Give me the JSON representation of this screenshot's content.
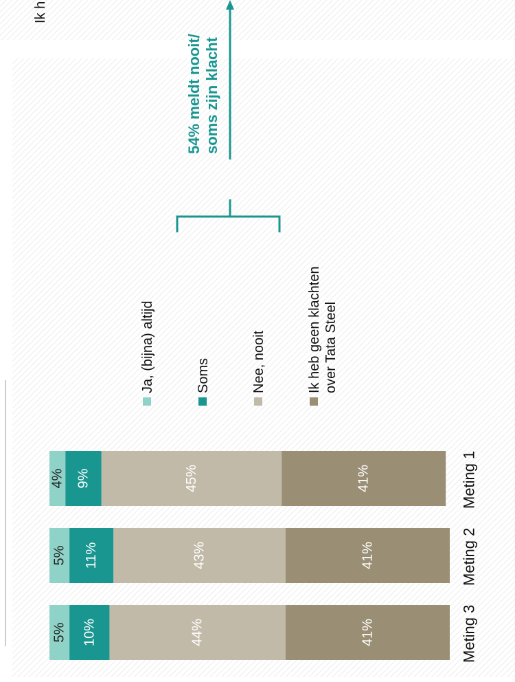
{
  "chart_data": {
    "type": "stacked_bar",
    "top_text": "Ik h",
    "categories": [
      "Meting 1",
      "Meting 2",
      "Meting 3"
    ],
    "series": [
      {
        "name": "Ja, (bijna) altijd",
        "color": "#8fd3c8",
        "values": [
          4,
          5,
          5
        ],
        "value_labels": [
          "4%",
          "5%",
          "5%"
        ]
      },
      {
        "name": "Soms",
        "color": "#1a9690",
        "values": [
          9,
          11,
          10
        ],
        "value_labels": [
          "9%",
          "11%",
          "10%"
        ]
      },
      {
        "name": "Nee, nooit",
        "color": "#c2baa8",
        "values": [
          45,
          43,
          44
        ],
        "value_labels": [
          "45%",
          "43%",
          "44%"
        ]
      },
      {
        "name": "Ik heb geen klachten over Tata Steel",
        "color": "#9a8f74",
        "values": [
          41,
          41,
          41
        ],
        "value_labels": [
          "41%",
          "41%",
          "41%"
        ]
      }
    ],
    "xlim": [
      0,
      100
    ],
    "annotation": "54% meldt nooit/ soms zijn klacht",
    "annotation_color": "#1a9690"
  }
}
